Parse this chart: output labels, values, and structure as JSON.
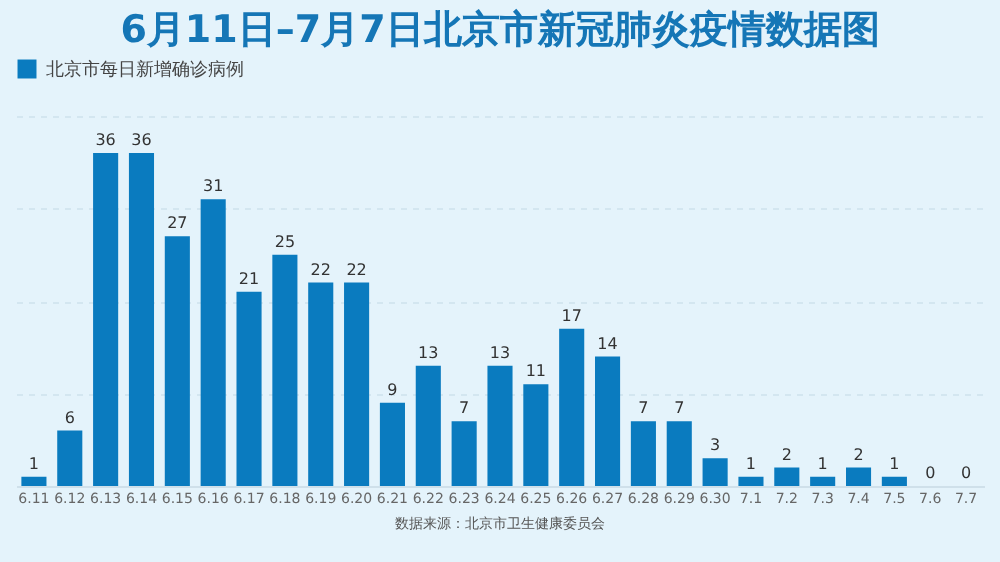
{
  "chart_data": {
    "type": "bar",
    "title": "6月11日–7月7日北京市新冠肺炎疫情数据图",
    "categories": [
      "6.11",
      "6.12",
      "6.13",
      "6.14",
      "6.15",
      "6.16",
      "6.17",
      "6.18",
      "6.19",
      "6.20",
      "6.21",
      "6.22",
      "6.23",
      "6.24",
      "6.25",
      "6.26",
      "6.27",
      "6.28",
      "6.29",
      "6.30",
      "7.1",
      "7.2",
      "7.3",
      "7.4",
      "7.5",
      "7.6",
      "7.7"
    ],
    "series": [
      {
        "name": "北京市每日新增确诊病例",
        "color": "#0a7bbf",
        "values": [
          1,
          6,
          36,
          36,
          27,
          31,
          21,
          25,
          22,
          22,
          9,
          13,
          7,
          13,
          11,
          17,
          14,
          7,
          7,
          3,
          1,
          2,
          1,
          2,
          1,
          0,
          0
        ]
      }
    ],
    "ylim": [
      0,
      40
    ],
    "yticks": [
      {
        "value": 0,
        "label": null
      },
      {
        "value": 10,
        "label": null
      },
      {
        "value": 20,
        "label": null
      },
      {
        "value": 30,
        "label": null
      },
      {
        "value": 40,
        "label": null
      }
    ],
    "grid": "y",
    "tick_labels": "x",
    "data_labels": true,
    "legend": "top",
    "annotations": [
      "数据来源：北京市卫生健康委员会"
    ]
  }
}
